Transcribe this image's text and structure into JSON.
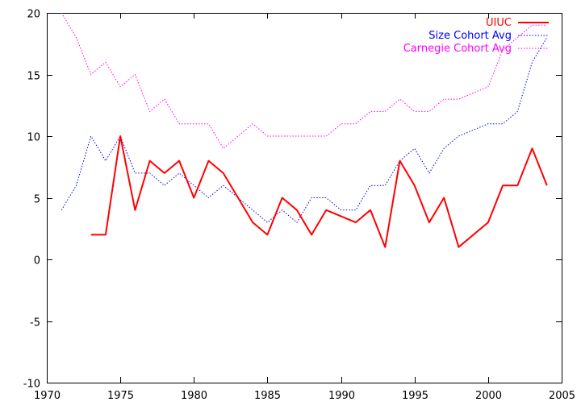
{
  "chart_data": {
    "type": "line",
    "title": "",
    "xlabel": "",
    "ylabel": "",
    "xlim": [
      1970,
      2005
    ],
    "ylim": [
      -10,
      20
    ],
    "x_ticks": [
      1970,
      1975,
      1980,
      1985,
      1990,
      1995,
      2000,
      2005
    ],
    "y_ticks": [
      -10,
      -5,
      0,
      5,
      10,
      15,
      20
    ],
    "grid": false,
    "legend_position": "top-right",
    "series": [
      {
        "name": "UIUC",
        "color": "#ff0000",
        "style": "solid",
        "points": [
          [
            1973,
            2
          ],
          [
            1974,
            2
          ],
          [
            1975,
            10
          ],
          [
            1976,
            4
          ],
          [
            1977,
            8
          ],
          [
            1978,
            7
          ],
          [
            1979,
            8
          ],
          [
            1980,
            5
          ],
          [
            1981,
            8
          ],
          [
            1982,
            7
          ],
          [
            1983,
            5
          ],
          [
            1984,
            3
          ],
          [
            1985,
            2
          ],
          [
            1986,
            5
          ],
          [
            1987,
            4
          ],
          [
            1988,
            2
          ],
          [
            1989,
            4
          ],
          [
            1991,
            3
          ],
          [
            1992,
            4
          ],
          [
            1993,
            1
          ],
          [
            1994,
            8
          ],
          [
            1995,
            6
          ],
          [
            1996,
            3
          ],
          [
            1997,
            5
          ],
          [
            1998,
            1
          ],
          [
            2000,
            3
          ],
          [
            2001,
            6
          ],
          [
            2002,
            6
          ],
          [
            2003,
            9
          ],
          [
            2004,
            6
          ]
        ]
      },
      {
        "name": "Size Cohort Avg",
        "color": "#0000ff",
        "style": "dotted",
        "points": [
          [
            1971,
            4
          ],
          [
            1972,
            6
          ],
          [
            1973,
            10
          ],
          [
            1974,
            8
          ],
          [
            1975,
            10
          ],
          [
            1976,
            7
          ],
          [
            1977,
            7
          ],
          [
            1978,
            6
          ],
          [
            1979,
            7
          ],
          [
            1980,
            6
          ],
          [
            1981,
            5
          ],
          [
            1982,
            6
          ],
          [
            1983,
            5
          ],
          [
            1984,
            4
          ],
          [
            1985,
            3
          ],
          [
            1986,
            4
          ],
          [
            1987,
            3
          ],
          [
            1988,
            5
          ],
          [
            1989,
            5
          ],
          [
            1990,
            4
          ],
          [
            1991,
            4
          ],
          [
            1992,
            6
          ],
          [
            1993,
            6
          ],
          [
            1994,
            8
          ],
          [
            1995,
            9
          ],
          [
            1996,
            7
          ],
          [
            1997,
            9
          ],
          [
            1998,
            10
          ],
          [
            1999,
            10.5
          ],
          [
            2000,
            11
          ],
          [
            2001,
            11
          ],
          [
            2002,
            12
          ],
          [
            2003,
            16
          ],
          [
            2004,
            18
          ]
        ]
      },
      {
        "name": "Carnegie Cohort Avg",
        "color": "#ff00ff",
        "style": "dotted",
        "points": [
          [
            1971,
            20
          ],
          [
            1972,
            18
          ],
          [
            1973,
            15
          ],
          [
            1974,
            16
          ],
          [
            1975,
            14
          ],
          [
            1976,
            15
          ],
          [
            1977,
            12
          ],
          [
            1978,
            13
          ],
          [
            1979,
            11
          ],
          [
            1980,
            11
          ],
          [
            1981,
            11
          ],
          [
            1982,
            9
          ],
          [
            1983,
            10
          ],
          [
            1984,
            11
          ],
          [
            1985,
            10
          ],
          [
            1986,
            10
          ],
          [
            1987,
            10
          ],
          [
            1988,
            10
          ],
          [
            1989,
            10
          ],
          [
            1990,
            11
          ],
          [
            1991,
            11
          ],
          [
            1992,
            12
          ],
          [
            1993,
            12
          ],
          [
            1994,
            13
          ],
          [
            1995,
            12
          ],
          [
            1996,
            12
          ],
          [
            1997,
            13
          ],
          [
            1998,
            13
          ],
          [
            1999,
            13.5
          ],
          [
            2000,
            14
          ],
          [
            2001,
            17
          ],
          [
            2002,
            18
          ],
          [
            2003,
            19
          ],
          [
            2004,
            19
          ]
        ]
      }
    ]
  }
}
